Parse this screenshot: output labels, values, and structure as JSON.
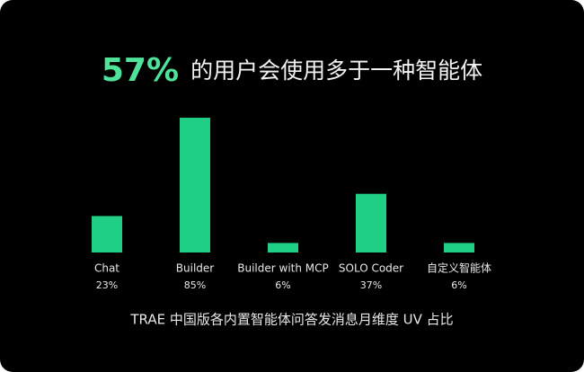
{
  "chart_data": {
    "type": "bar",
    "title_highlight": "57%",
    "title": "的用户会使用多于一种智能体",
    "caption": "TRAE 中国版各内置智能体问答发消息月维度 UV 占比",
    "categories": [
      "Chat",
      "Builder",
      "Builder with MCP",
      "SOLO Coder",
      "自定义智能体"
    ],
    "values": [
      23,
      85,
      6,
      37,
      6
    ],
    "value_labels": [
      "23%",
      "85%",
      "6%",
      "37%",
      "6%"
    ],
    "color": "#1fcf85"
  }
}
